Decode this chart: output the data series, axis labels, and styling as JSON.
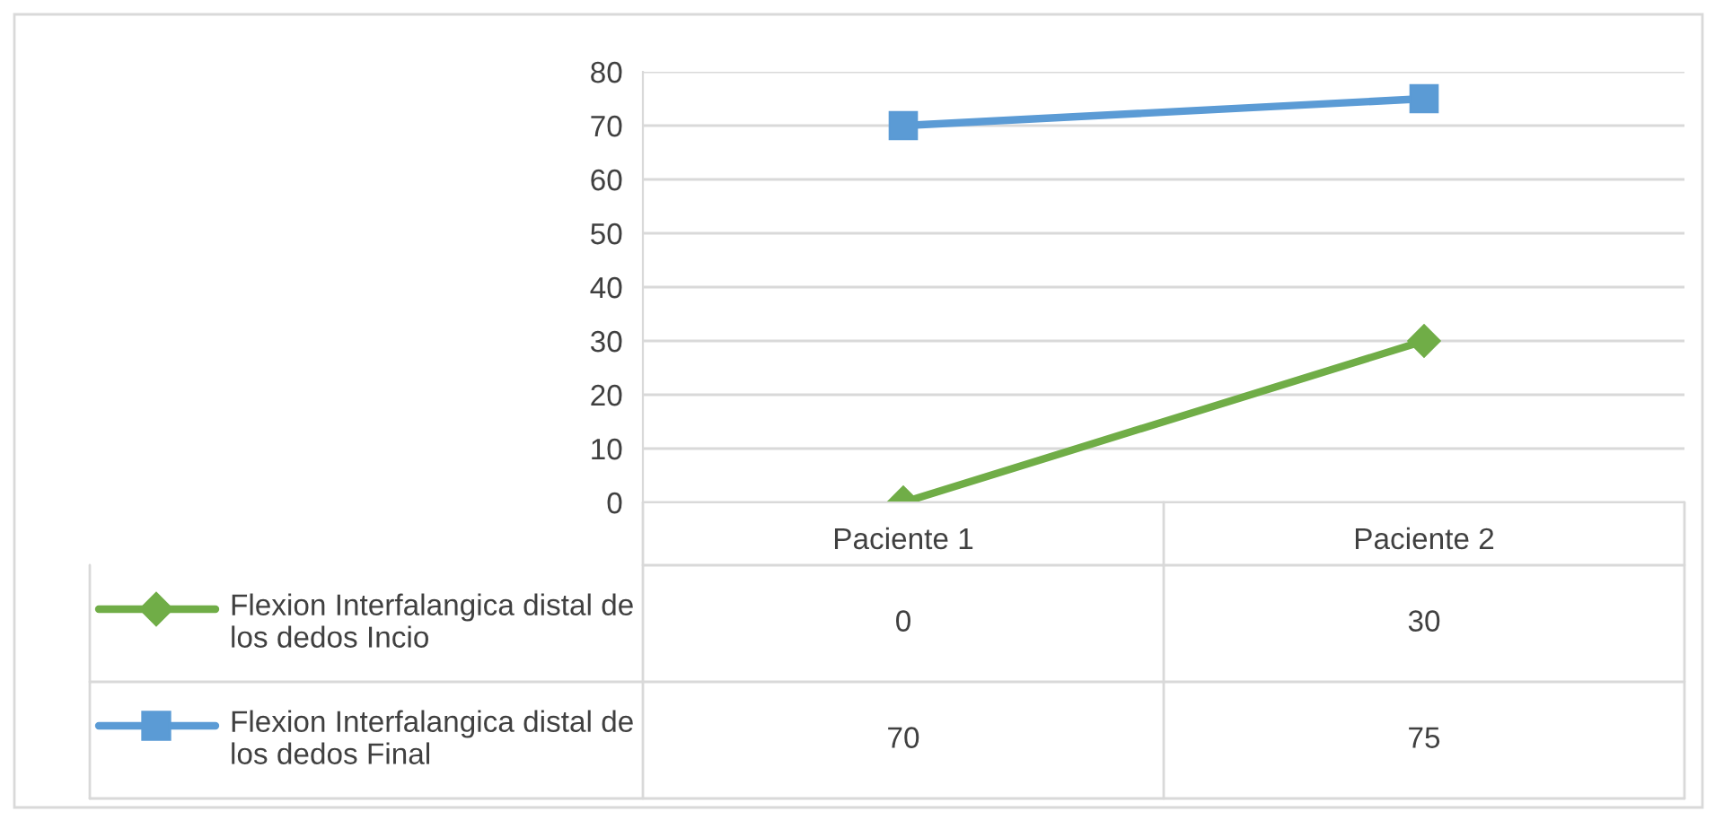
{
  "chart_data": {
    "type": "line",
    "categories": [
      "Paciente 1",
      "Paciente 2"
    ],
    "series": [
      {
        "name": "Flexion Interfalangica distal de los dedos Incio",
        "color": "#70ad47",
        "marker": "diamond",
        "values": [
          0,
          30
        ]
      },
      {
        "name": "Flexion Interfalangica distal de los dedos Final",
        "color": "#5b9bd5",
        "marker": "square",
        "values": [
          70,
          75
        ]
      }
    ],
    "ylim": [
      0,
      80
    ],
    "yticks": [
      0,
      10,
      20,
      30,
      40,
      50,
      60,
      70,
      80
    ],
    "grid": "y",
    "legend": "bottom",
    "data_labels": true
  }
}
